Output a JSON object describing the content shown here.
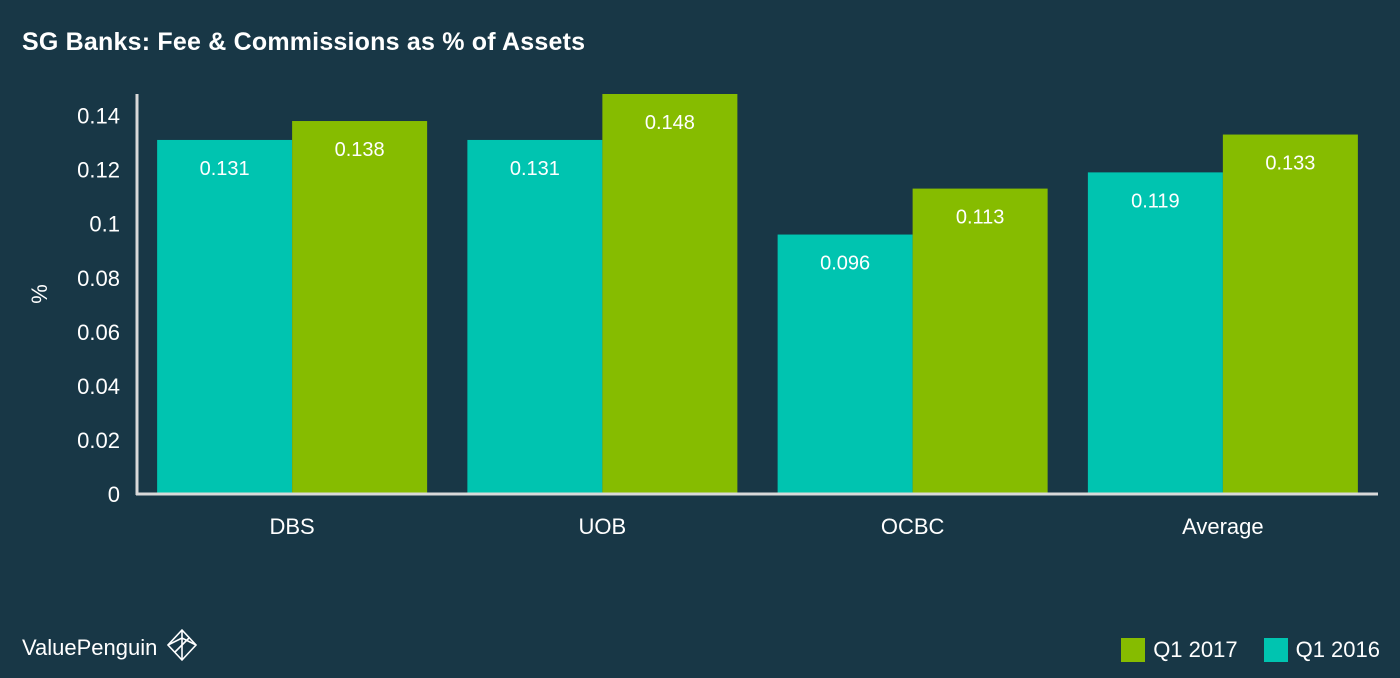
{
  "chart_data": {
    "type": "bar",
    "title": "SG Banks: Fee & Commissions as % of Assets",
    "ylabel": "%",
    "xlabel": "",
    "categories": [
      "DBS",
      "UOB",
      "OCBC",
      "Average"
    ],
    "series": [
      {
        "name": "Q1 2016",
        "color": "#00C4B0",
        "values": [
          0.131,
          0.131,
          0.096,
          0.119
        ]
      },
      {
        "name": "Q1 2017",
        "color": "#86BC00",
        "values": [
          0.138,
          0.148,
          0.113,
          0.133
        ]
      }
    ],
    "data_labels": [
      [
        "0.131",
        "0.131",
        "0.096",
        "0.119"
      ],
      [
        "0.138",
        "0.148",
        "0.113",
        "0.133"
      ]
    ],
    "ylim": [
      0,
      0.148
    ],
    "yticks": [
      0,
      0.02,
      0.04,
      0.06,
      0.08,
      0.1,
      0.12,
      0.14
    ],
    "ytick_labels": [
      "0",
      "0.02",
      "0.04",
      "0.06",
      "0.08",
      "0.1",
      "0.12",
      "0.14"
    ],
    "grid": false,
    "legend": {
      "placement": "bottom-right",
      "entries": [
        {
          "label": "Q1 2017",
          "color": "#86BC00"
        },
        {
          "label": "Q1 2016",
          "color": "#00C4B0"
        }
      ]
    }
  },
  "brand": {
    "name": "ValuePenguin",
    "icon": "valuepenguin-logo-icon"
  }
}
